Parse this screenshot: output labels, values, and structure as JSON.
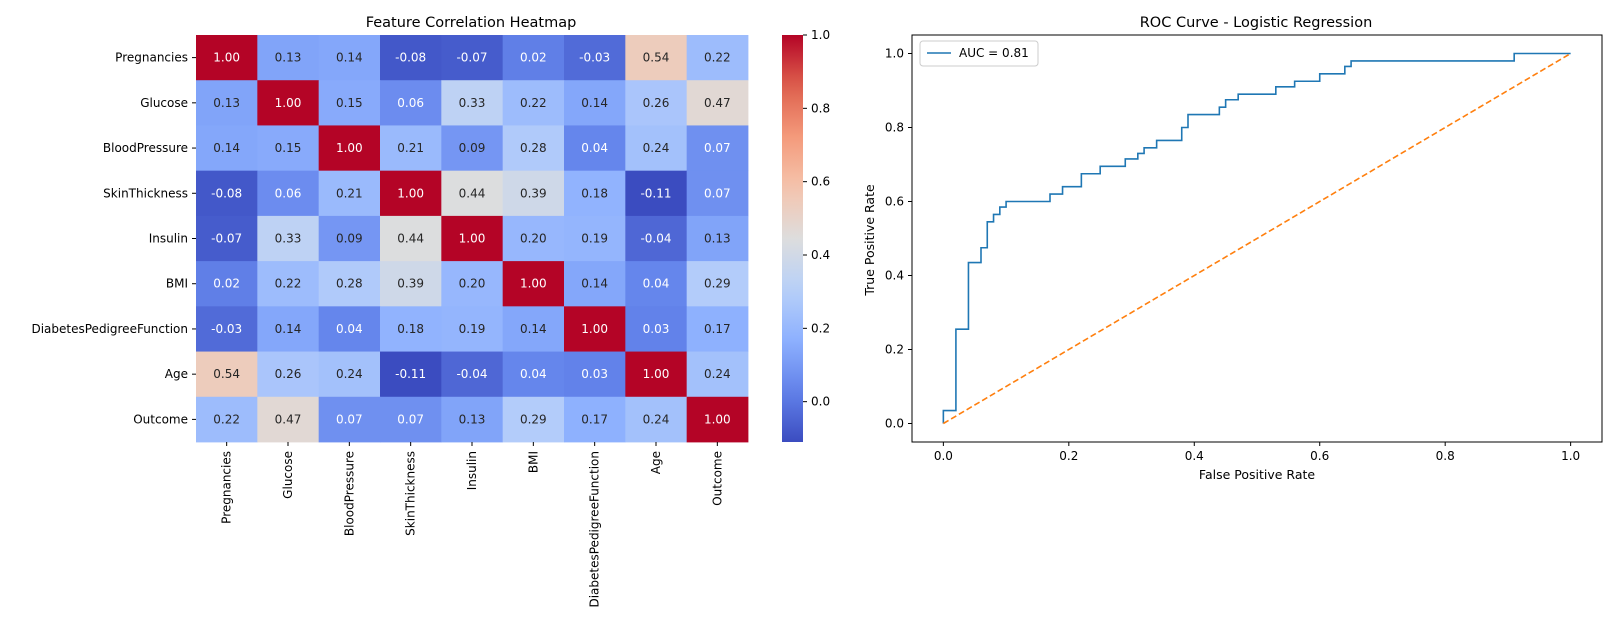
{
  "chart_data": [
    {
      "type": "heatmap",
      "title": "Feature Correlation Heatmap",
      "labels": [
        "Pregnancies",
        "Glucose",
        "BloodPressure",
        "SkinThickness",
        "Insulin",
        "BMI",
        "DiabetesPedigreeFunction",
        "Age",
        "Outcome"
      ],
      "matrix": [
        [
          1.0,
          0.13,
          0.14,
          -0.08,
          -0.07,
          0.02,
          -0.03,
          0.54,
          0.22
        ],
        [
          0.13,
          1.0,
          0.15,
          0.06,
          0.33,
          0.22,
          0.14,
          0.26,
          0.47
        ],
        [
          0.14,
          0.15,
          1.0,
          0.21,
          0.09,
          0.28,
          0.04,
          0.24,
          0.07
        ],
        [
          -0.08,
          0.06,
          0.21,
          1.0,
          0.44,
          0.39,
          0.18,
          -0.11,
          0.07
        ],
        [
          -0.07,
          0.33,
          0.09,
          0.44,
          1.0,
          0.2,
          0.19,
          -0.04,
          0.13
        ],
        [
          0.02,
          0.22,
          0.28,
          0.39,
          0.2,
          1.0,
          0.14,
          0.04,
          0.29
        ],
        [
          -0.03,
          0.14,
          0.04,
          0.18,
          0.19,
          0.14,
          1.0,
          0.03,
          0.17
        ],
        [
          0.54,
          0.26,
          0.24,
          -0.11,
          -0.04,
          0.04,
          0.03,
          1.0,
          0.24
        ],
        [
          0.22,
          0.47,
          0.07,
          0.07,
          0.13,
          0.29,
          0.17,
          0.24,
          1.0
        ]
      ],
      "value_format": "0.00",
      "colormap": "coolwarm",
      "color_range": [
        -0.11,
        1.0
      ],
      "colorbar_ticks": [
        "1.0",
        "0.8",
        "0.6",
        "0.4",
        "0.2",
        "0.0"
      ],
      "colorbar_tick_values": [
        1.0,
        0.8,
        0.6,
        0.4,
        0.2,
        0.0
      ]
    },
    {
      "type": "line",
      "title": "ROC Curve - Logistic Regression",
      "xlabel": "False Positive Rate",
      "ylabel": "True Positive Rate",
      "xlim": [
        -0.05,
        1.05
      ],
      "ylim": [
        -0.05,
        1.05
      ],
      "xticks": [
        "0.0",
        "0.2",
        "0.4",
        "0.6",
        "0.8",
        "1.0"
      ],
      "xtick_values": [
        0.0,
        0.2,
        0.4,
        0.6,
        0.8,
        1.0
      ],
      "yticks": [
        "0.0",
        "0.2",
        "0.4",
        "0.6",
        "0.8",
        "1.0"
      ],
      "ytick_values": [
        0.0,
        0.2,
        0.4,
        0.6,
        0.8,
        1.0
      ],
      "legend_position": "top-left",
      "grid": false,
      "series": [
        {
          "name": "AUC = 0.81",
          "color": "#1f77b4",
          "style": "solid",
          "x": [
            0.0,
            0.0,
            0.02,
            0.02,
            0.04,
            0.04,
            0.06,
            0.06,
            0.07,
            0.07,
            0.08,
            0.08,
            0.09,
            0.09,
            0.1,
            0.1,
            0.17,
            0.17,
            0.19,
            0.19,
            0.22,
            0.22,
            0.25,
            0.25,
            0.29,
            0.29,
            0.31,
            0.31,
            0.32,
            0.32,
            0.34,
            0.34,
            0.38,
            0.38,
            0.39,
            0.39,
            0.44,
            0.44,
            0.45,
            0.45,
            0.47,
            0.47,
            0.53,
            0.53,
            0.56,
            0.56,
            0.6,
            0.6,
            0.64,
            0.64,
            0.65,
            0.65,
            0.91,
            0.91,
            1.0
          ],
          "y": [
            0.0,
            0.035,
            0.035,
            0.255,
            0.255,
            0.435,
            0.435,
            0.475,
            0.475,
            0.545,
            0.545,
            0.565,
            0.565,
            0.585,
            0.585,
            0.6,
            0.6,
            0.62,
            0.62,
            0.64,
            0.64,
            0.675,
            0.675,
            0.695,
            0.695,
            0.715,
            0.715,
            0.73,
            0.73,
            0.745,
            0.745,
            0.765,
            0.765,
            0.8,
            0.8,
            0.835,
            0.835,
            0.855,
            0.855,
            0.875,
            0.875,
            0.89,
            0.89,
            0.91,
            0.91,
            0.925,
            0.925,
            0.945,
            0.945,
            0.965,
            0.965,
            0.98,
            0.98,
            1.0,
            1.0
          ]
        },
        {
          "name": "",
          "color": "#ff7f0e",
          "style": "dashed",
          "x": [
            0.0,
            1.0
          ],
          "y": [
            0.0,
            1.0
          ]
        }
      ]
    }
  ]
}
